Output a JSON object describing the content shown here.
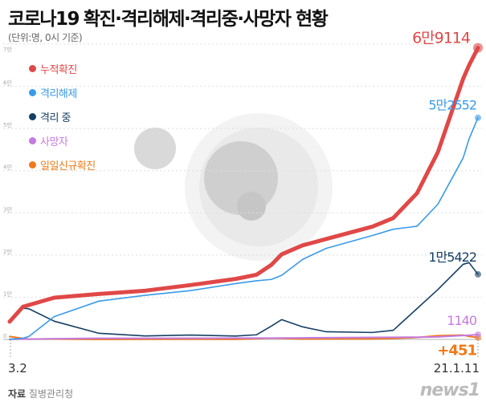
{
  "title": {
    "main": "코로나19",
    "rest": "확진·격리해제·격리중·사망자 현황"
  },
  "unit": "(단위:명, 0시 기준)",
  "source": {
    "label": "자료",
    "value": "질병관리청"
  },
  "logo": "news1",
  "chart_data": {
    "type": "line",
    "x_start_label": "3.2",
    "x_end_label": "21.1.11",
    "ylim": [
      0,
      70000
    ],
    "yticks": [
      "0",
      "1만",
      "2만",
      "3만",
      "4만",
      "5만",
      "6만",
      "7만"
    ],
    "grid": true,
    "legend_placement": "top-left",
    "x": [
      "2020-03-02",
      "2020-03-11",
      "2020-03-15",
      "2020-04-01",
      "2020-05-01",
      "2020-06-01",
      "2020-07-01",
      "2020-08-01",
      "2020-08-15",
      "2020-08-25",
      "2020-09-01",
      "2020-09-15",
      "2020-10-01",
      "2020-11-01",
      "2020-11-15",
      "2020-12-01",
      "2020-12-15",
      "2021-01-01",
      "2021-01-05",
      "2021-01-11"
    ],
    "series": [
      {
        "name": "누적확진",
        "color": "#e04848",
        "end_label": "6만9114",
        "values": [
          4212,
          7755,
          8162,
          9887,
          10774,
          11541,
          12850,
          14336,
          15318,
          17665,
          20182,
          22285,
          23812,
          26732,
          28769,
          34652,
          44364,
          61769,
          64979,
          69114
        ]
      },
      {
        "name": "격리해제",
        "color": "#3a9ae8",
        "end_label": "5만2552",
        "values": [
          31,
          288,
          714,
          5408,
          9072,
          10446,
          11537,
          13233,
          13901,
          14219,
          15198,
          18954,
          21590,
          24627,
          26117,
          26825,
          32027,
          43000,
          47500,
          52552
        ]
      },
      {
        "name": "격리 중",
        "color": "#163f63",
        "end_label": "1만5422",
        "values": [
          4159,
          7407,
          7253,
          4317,
          1454,
          826,
          1031,
          802,
          1092,
          3141,
          4686,
          2978,
          1810,
          1642,
          2158,
          7300,
          11800,
          17800,
          18200,
          15422
        ]
      },
      {
        "name": "사망자",
        "color": "#c57be0",
        "end_label": "1140",
        "values": [
          28,
          60,
          75,
          165,
          250,
          272,
          282,
          301,
          305,
          309,
          324,
          363,
          415,
          474,
          494,
          526,
          587,
          917,
          1007,
          1140
        ]
      },
      {
        "name": "일일신규확진",
        "color": "#f07a1a",
        "end_label": "+451",
        "values": [
          686,
          242,
          76,
          101,
          9,
          35,
          51,
          31,
          166,
          280,
          235,
          106,
          113,
          124,
          223,
          451,
          880,
          1029,
          715,
          451
        ]
      }
    ]
  }
}
